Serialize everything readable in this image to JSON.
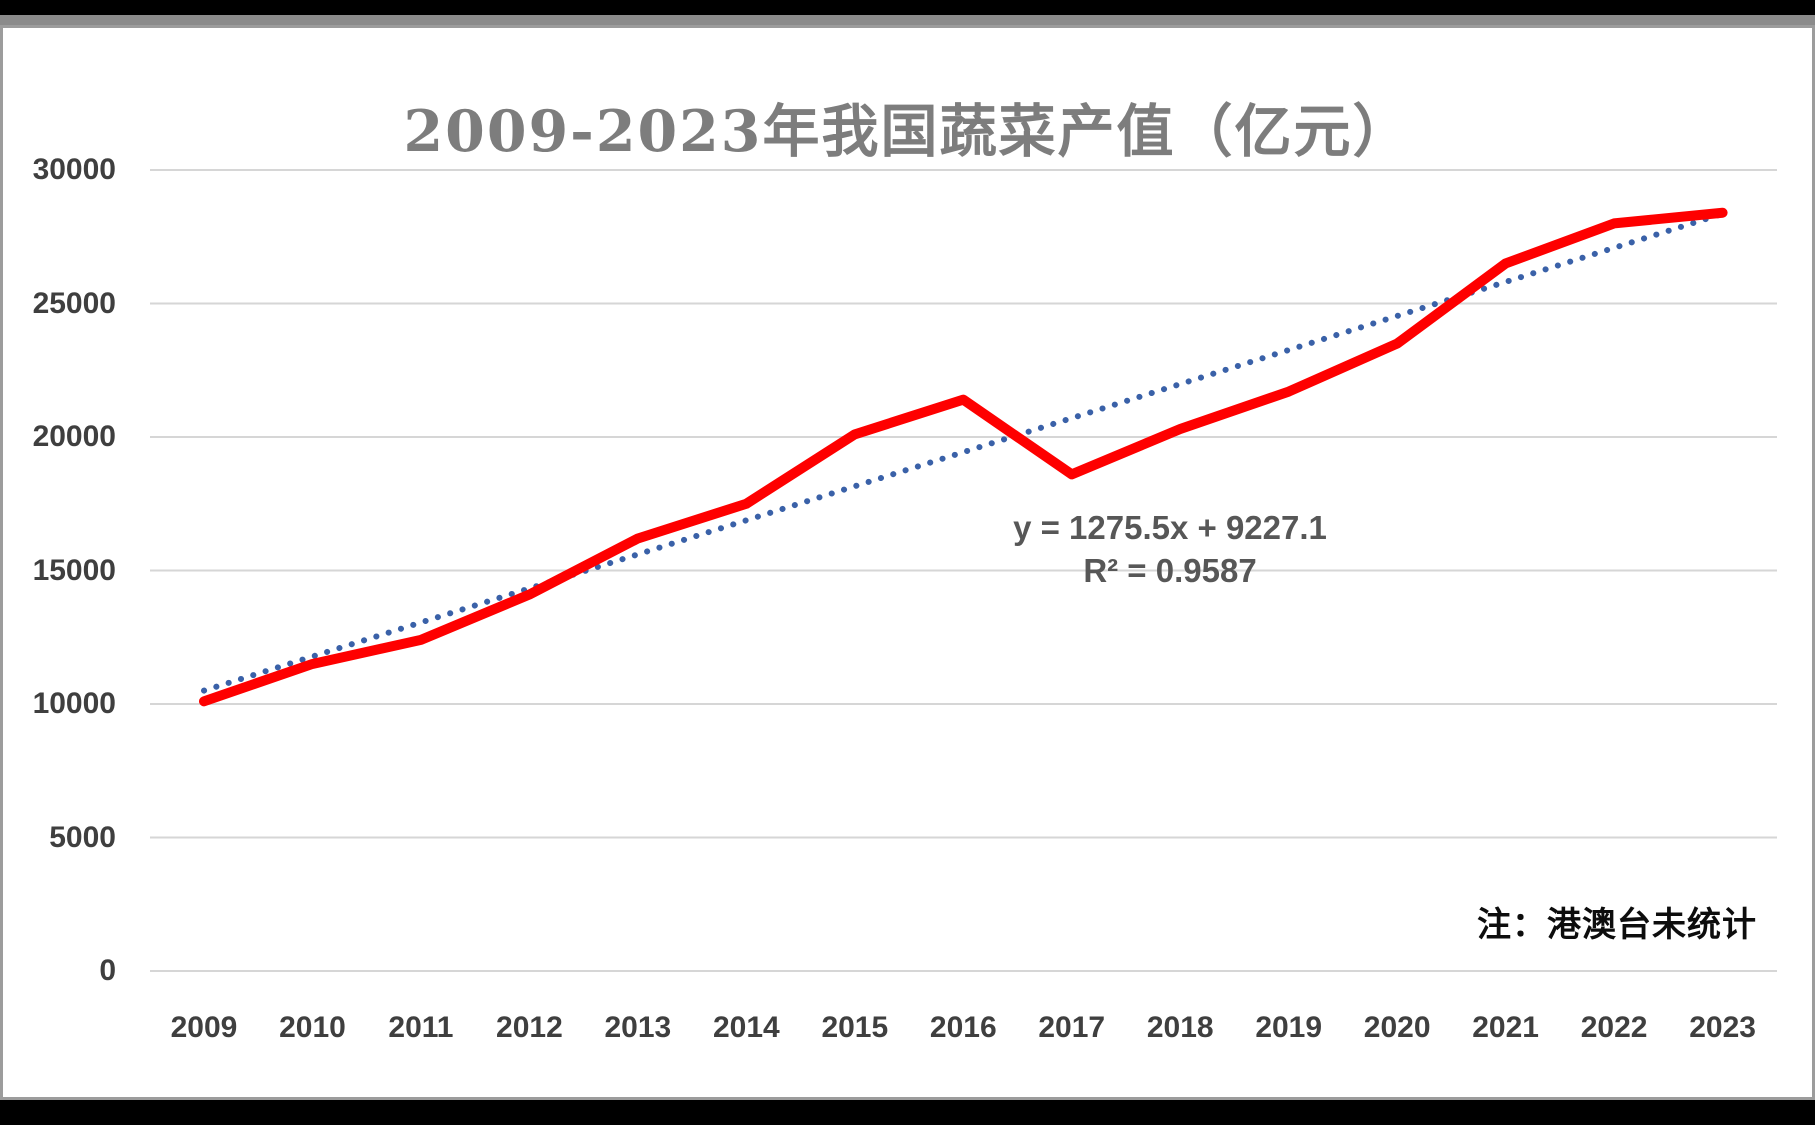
{
  "chart_data": {
    "type": "line",
    "title": "2009-2023年我国蔬菜产值（亿元）",
    "categories": [
      "2009",
      "2010",
      "2011",
      "2012",
      "2013",
      "2014",
      "2015",
      "2016",
      "2017",
      "2018",
      "2019",
      "2020",
      "2021",
      "2022",
      "2023"
    ],
    "series": [
      {
        "color": "#fe0000",
        "values": [
          10100,
          11500,
          12400,
          14100,
          16200,
          17500,
          20100,
          21400,
          18600,
          20300,
          21700,
          23500,
          26500,
          28000,
          28400
        ]
      }
    ],
    "trendline": {
      "equation_label": "y = 1275.5x + 9227.1",
      "r_squared_label": "R² = 0.9587",
      "slope": 1275.5,
      "intercept": 9227.1,
      "color": "#3a61a8",
      "style": "dotted"
    },
    "yticks": [
      0,
      5000,
      10000,
      15000,
      20000,
      25000,
      30000
    ],
    "ylim": [
      0,
      30000
    ],
    "grid": true,
    "legend": "none",
    "note": "注：港澳台未统计",
    "colors": {
      "gridline": "#d6d6d6",
      "title": "#7d7d7d",
      "axis_labels": "#3f3f3f",
      "equation": "#575757",
      "note": "#0d0d0d"
    }
  }
}
